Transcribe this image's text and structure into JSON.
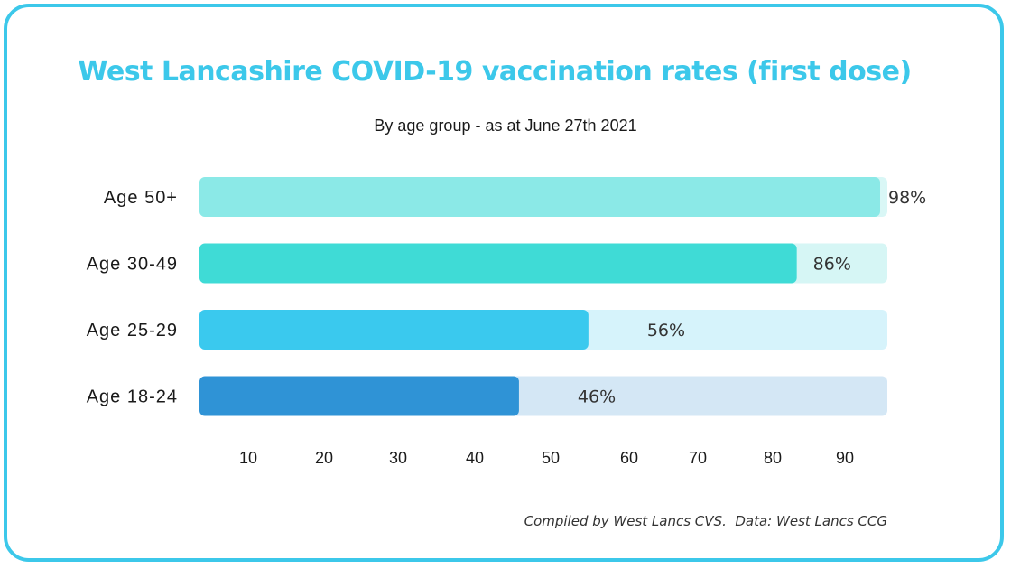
{
  "chart_data": {
    "type": "bar",
    "orientation": "horizontal",
    "title": "West Lancashire COVID-19 vaccination rates (first dose)",
    "subtitle": "By age group - as at June 27th 2021",
    "categories": [
      "Age 50+",
      "Age 30-49",
      "Age 25-29",
      "Age 18-24"
    ],
    "values": [
      98,
      86,
      56,
      46
    ],
    "value_labels": [
      "98%",
      "86%",
      "56%",
      "46%"
    ],
    "bar_colors": [
      "#8be9e7",
      "#3fdbd6",
      "#3ac9ee",
      "#2f93d6"
    ],
    "track_colors": [
      "#d9f7f6",
      "#d6f6f5",
      "#d6f3fb",
      "#d4e7f5"
    ],
    "x_ticks": [
      10,
      20,
      30,
      40,
      50,
      60,
      70,
      80,
      90
    ],
    "xlim": [
      0,
      100
    ],
    "grid": false,
    "footnote": "Compiled by West Lancs CVS.  Data: West Lancs CCG"
  },
  "frame_color": "#3cc8ea",
  "title_color": "#3cc8ea"
}
